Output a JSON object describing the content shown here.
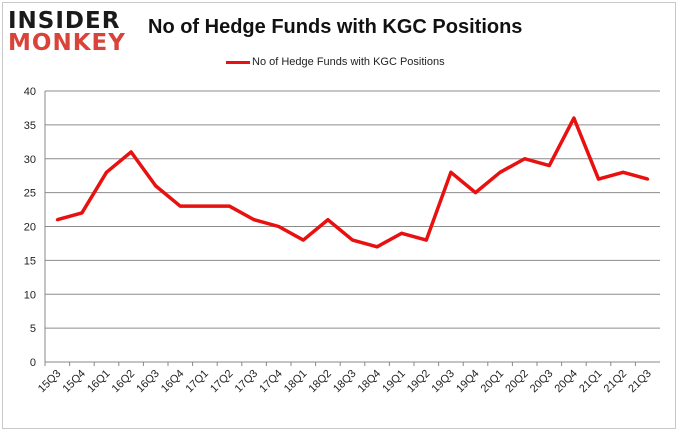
{
  "logo": {
    "line1": "INSIDER",
    "line2": "MONKEY"
  },
  "chart_data": {
    "type": "line",
    "title": "No of Hedge Funds with KGC Positions",
    "xlabel": "",
    "ylabel": "",
    "ylim": [
      0,
      40
    ],
    "yticks": [
      0,
      5,
      10,
      15,
      20,
      25,
      30,
      35,
      40
    ],
    "grid": true,
    "legend_position": "top-center",
    "categories": [
      "15Q3",
      "15Q4",
      "16Q1",
      "16Q2",
      "16Q3",
      "16Q4",
      "17Q1",
      "17Q2",
      "17Q3",
      "17Q4",
      "18Q1",
      "18Q2",
      "18Q3",
      "18Q4",
      "19Q1",
      "19Q2",
      "19Q3",
      "19Q4",
      "20Q1",
      "20Q2",
      "20Q3",
      "20Q4",
      "21Q1",
      "21Q2",
      "21Q3"
    ],
    "series": [
      {
        "name": "No of Hedge Funds with KGC Positions",
        "color": "#e8110f",
        "values": [
          21,
          22,
          28,
          31,
          26,
          23,
          23,
          23,
          21,
          20,
          18,
          21,
          18,
          17,
          19,
          18,
          28,
          25,
          28,
          30,
          29,
          36,
          27,
          28,
          27
        ]
      }
    ]
  }
}
